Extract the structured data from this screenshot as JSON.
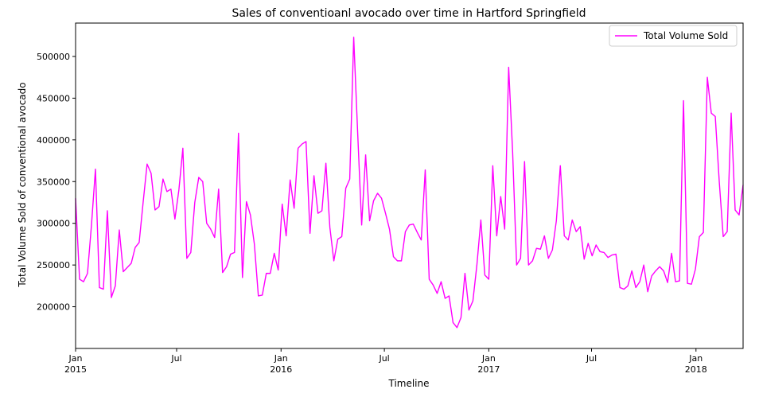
{
  "chart_data": {
    "type": "line",
    "title": "Sales of conventioanl avocado over time in Hartford Springfield",
    "xlabel": "Timeline",
    "ylabel": "Total Volume Sold of conventional avocado",
    "x_start": "2015-01-04",
    "x_step_days": 7,
    "xlim": [
      "2015-01-04",
      "2018-03-25"
    ],
    "ylim": [
      150000,
      540000
    ],
    "y_ticks": [
      200000,
      250000,
      300000,
      350000,
      400000,
      450000,
      500000
    ],
    "x_ticks": [
      {
        "date": "2015-01-04",
        "label": "Jan",
        "year": "2015"
      },
      {
        "date": "2015-07-01",
        "label": "Jul",
        "year": ""
      },
      {
        "date": "2016-01-01",
        "label": "Jan",
        "year": "2016"
      },
      {
        "date": "2016-07-01",
        "label": "Jul",
        "year": ""
      },
      {
        "date": "2017-01-01",
        "label": "Jan",
        "year": "2017"
      },
      {
        "date": "2017-07-01",
        "label": "Jul",
        "year": ""
      },
      {
        "date": "2018-01-01",
        "label": "Jan",
        "year": "2018"
      }
    ],
    "grid": false,
    "legend_position": "top-right",
    "series": [
      {
        "name": "Total Volume Sold",
        "color": "#ff00ff",
        "values": [
          330000,
          233000,
          230000,
          240000,
          298000,
          365000,
          223000,
          221000,
          315000,
          211000,
          225000,
          292000,
          242000,
          247000,
          252000,
          271000,
          277000,
          325000,
          371000,
          360000,
          316000,
          320000,
          353000,
          338000,
          341000,
          305000,
          340000,
          390000,
          258000,
          265000,
          325000,
          355000,
          350000,
          300000,
          293000,
          283000,
          341000,
          241000,
          248000,
          263000,
          265000,
          408000,
          235000,
          326000,
          310000,
          275000,
          213000,
          214000,
          240000,
          240000,
          264000,
          244000,
          323000,
          285000,
          352000,
          318000,
          390000,
          395000,
          398000,
          288000,
          357000,
          312000,
          315000,
          372000,
          295000,
          255000,
          281000,
          284000,
          342000,
          353000,
          523000,
          408000,
          298000,
          382000,
          303000,
          327000,
          336000,
          330000,
          312000,
          293000,
          260000,
          255000,
          255000,
          290000,
          298000,
          299000,
          289000,
          280000,
          364000,
          233000,
          226000,
          216000,
          230000,
          210000,
          213000,
          181000,
          175000,
          187000,
          240000,
          196000,
          207000,
          250000,
          304000,
          238000,
          233000,
          369000,
          285000,
          332000,
          293000,
          487000,
          385000,
          250000,
          258000,
          374000,
          250000,
          255000,
          270000,
          269000,
          285000,
          258000,
          268000,
          303000,
          369000,
          285000,
          280000,
          304000,
          290000,
          296000,
          257000,
          276000,
          261000,
          274000,
          266000,
          265000,
          259000,
          262000,
          263000,
          223000,
          221000,
          225000,
          243000,
          223000,
          230000,
          250000,
          218000,
          237000,
          243000,
          248000,
          243000,
          229000,
          264000,
          230000,
          231000,
          447000,
          228000,
          227000,
          245000,
          284000,
          289000,
          475000,
          432000,
          428000,
          350000,
          284000,
          290000,
          432000,
          316000,
          310000,
          346000
        ]
      }
    ]
  }
}
